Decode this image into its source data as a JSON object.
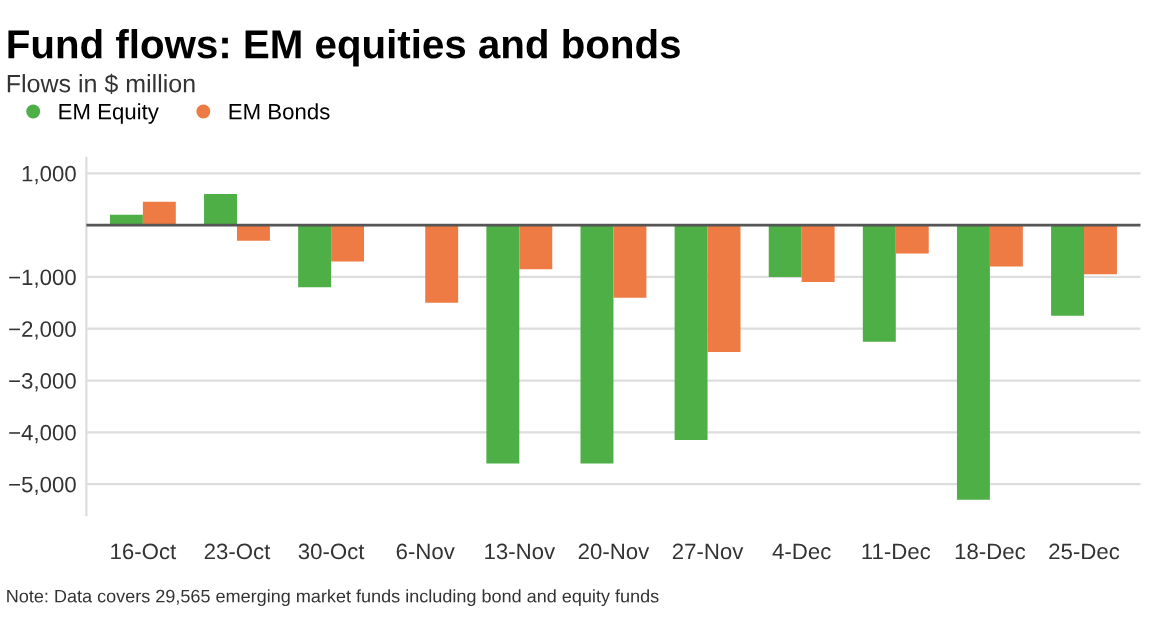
{
  "chart_data": {
    "type": "bar",
    "title": "Fund flows: EM equities and bonds",
    "subtitle": "Flows in $ million",
    "categories": [
      "16-Oct",
      "23-Oct",
      "30-Oct",
      "6-Nov",
      "13-Nov",
      "20-Nov",
      "27-Nov",
      "4-Dec",
      "11-Dec",
      "18-Dec",
      "25-Dec"
    ],
    "series": [
      {
        "name": "EM Equity",
        "color": "#4daf46",
        "values": [
          200,
          600,
          -1200,
          0,
          -4600,
          -4600,
          -4150,
          -1000,
          -2250,
          -5300,
          -1750
        ]
      },
      {
        "name": "EM Bonds",
        "color": "#ee7b43",
        "values": [
          450,
          -300,
          -700,
          -1500,
          -850,
          -1400,
          -2450,
          -1100,
          -550,
          -800,
          -950
        ]
      }
    ],
    "ylim": [
      -5600,
      1300
    ],
    "yticks": [
      {
        "value": 1000,
        "label": "1,000"
      },
      {
        "value": 0,
        "label": null
      },
      {
        "value": -1000,
        "label": "−1,000"
      },
      {
        "value": -2000,
        "label": "−2,000"
      },
      {
        "value": -3000,
        "label": "−3,000"
      },
      {
        "value": -4000,
        "label": "−4,000"
      },
      {
        "value": -5000,
        "label": "−5,000"
      }
    ],
    "grid": "y",
    "legend": "top left",
    "annotations": [
      "Note: Data covers 29,565 emerging market funds including bond and equity funds"
    ]
  }
}
